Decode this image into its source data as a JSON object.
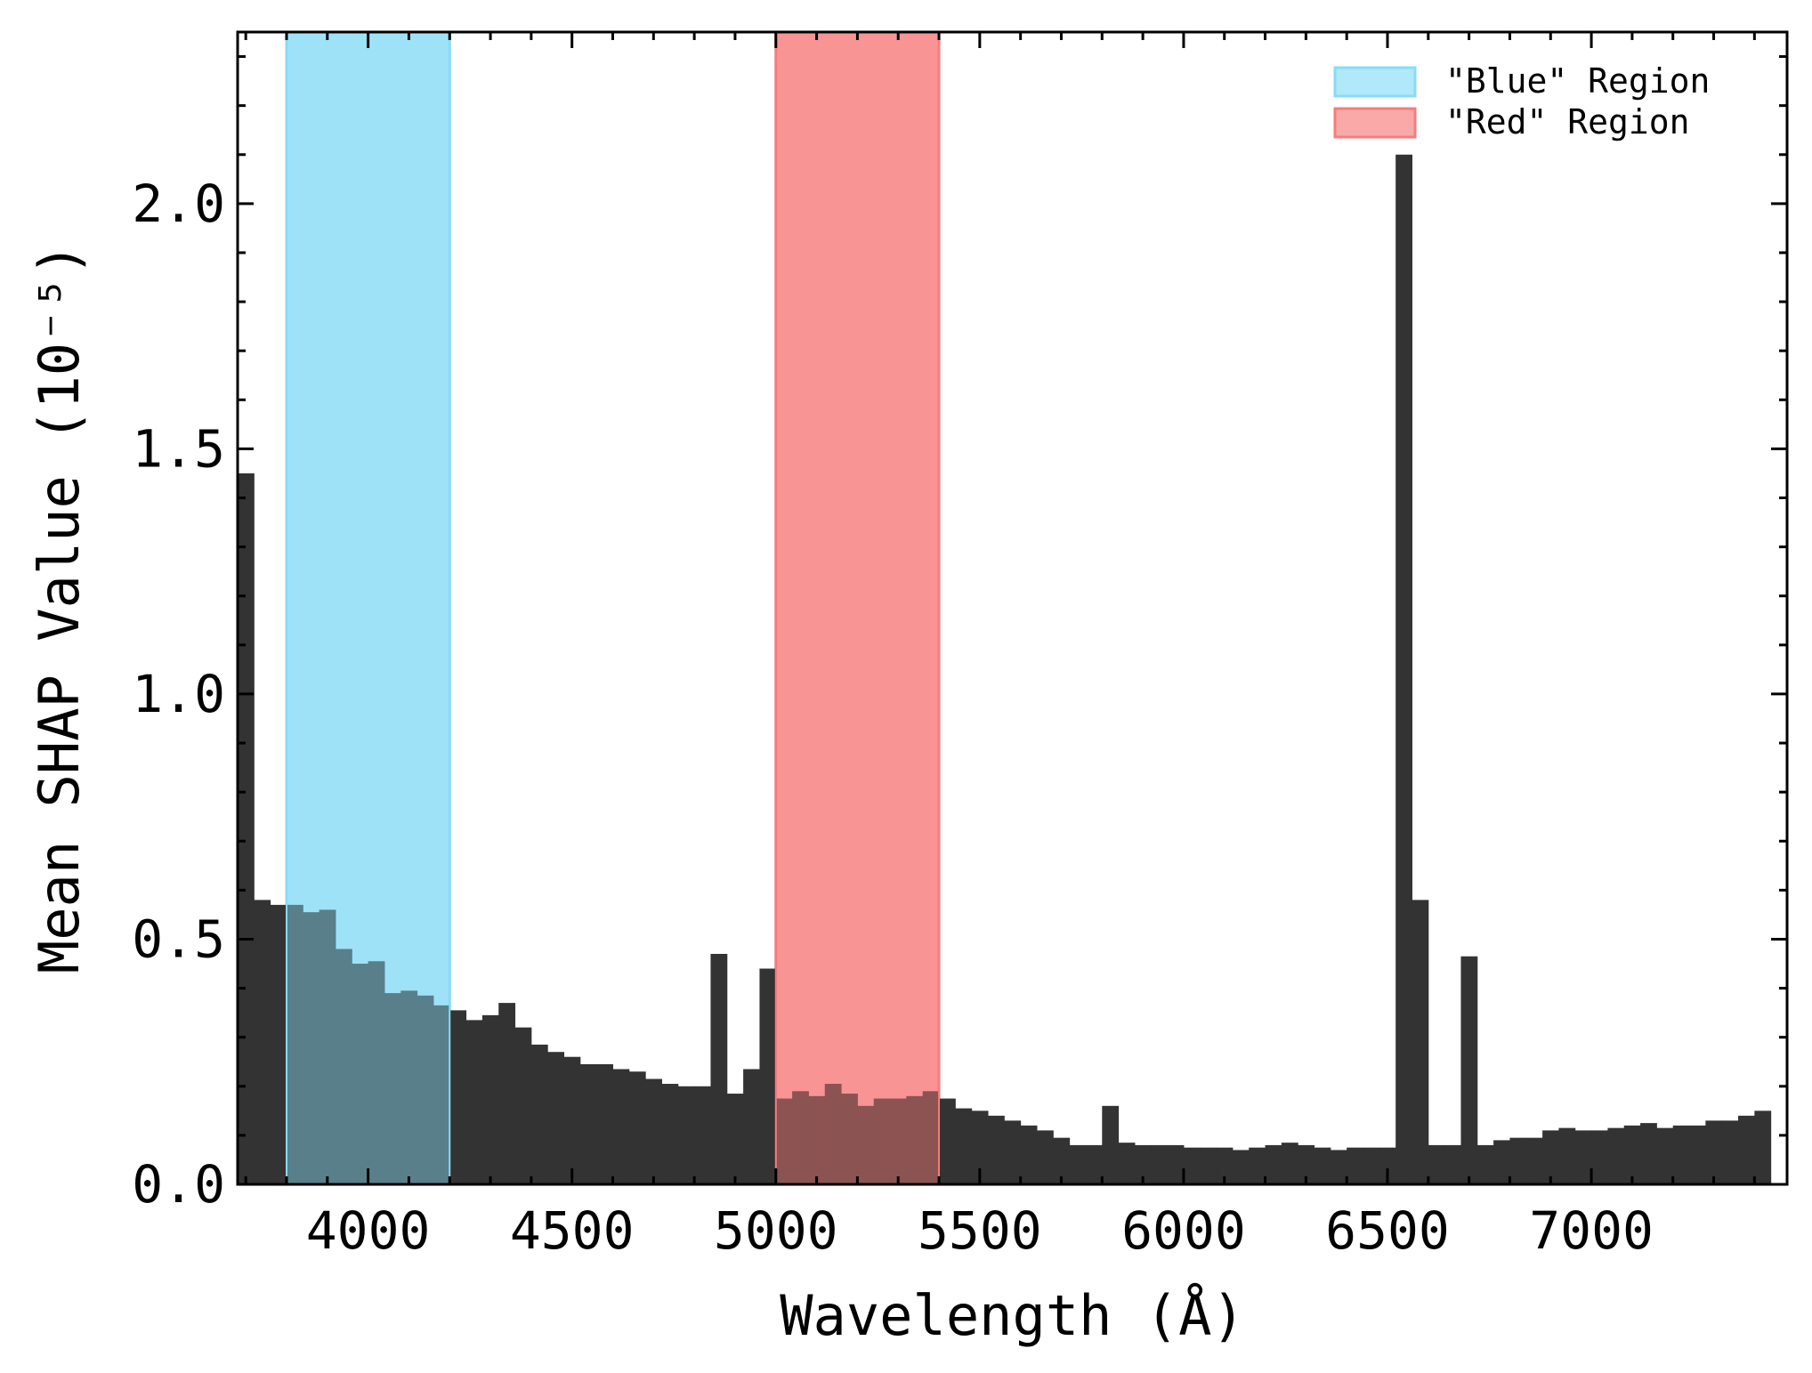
{
  "chart_data": {
    "type": "bar",
    "title": "",
    "xlabel": "Wavelength (Å)",
    "ylabel": "Mean SHAP Value (10⁻⁵)",
    "xlim": [
      3680,
      7480
    ],
    "ylim": [
      0,
      2.35
    ],
    "x_ticks": [
      4000,
      4500,
      5000,
      5500,
      6000,
      6500,
      7000
    ],
    "y_ticks": [
      0.0,
      0.5,
      1.0,
      1.5,
      2.0
    ],
    "x_tick_labels": [
      "4000",
      "4500",
      "5000",
      "5500",
      "6000",
      "6500",
      "7000"
    ],
    "y_tick_labels": [
      "0.0",
      "0.5",
      "1.0",
      "1.5",
      "2.0"
    ],
    "grid": false,
    "bin_width": 40,
    "x_start": 3680,
    "values": [
      1.45,
      0.58,
      0.57,
      0.57,
      0.555,
      0.56,
      0.48,
      0.45,
      0.455,
      0.39,
      0.395,
      0.385,
      0.365,
      0.355,
      0.335,
      0.345,
      0.37,
      0.32,
      0.285,
      0.27,
      0.26,
      0.245,
      0.245,
      0.235,
      0.23,
      0.215,
      0.205,
      0.2,
      0.2,
      0.47,
      0.185,
      0.235,
      0.44,
      0.175,
      0.19,
      0.18,
      0.205,
      0.185,
      0.16,
      0.175,
      0.175,
      0.18,
      0.19,
      0.175,
      0.155,
      0.15,
      0.14,
      0.13,
      0.12,
      0.11,
      0.095,
      0.08,
      0.08,
      0.16,
      0.085,
      0.08,
      0.08,
      0.08,
      0.075,
      0.075,
      0.075,
      0.07,
      0.075,
      0.08,
      0.085,
      0.08,
      0.075,
      0.07,
      0.075,
      0.075,
      0.075,
      2.1,
      0.58,
      0.08,
      0.08,
      0.465,
      0.08,
      0.09,
      0.095,
      0.095,
      0.11,
      0.115,
      0.11,
      0.11,
      0.115,
      0.12,
      0.125,
      0.115,
      0.12,
      0.12,
      0.13,
      0.13,
      0.14,
      0.15
    ],
    "regions": [
      {
        "name": "\"Blue\" Region",
        "x0": 3800,
        "x1": 4200,
        "color": "#87dcf7"
      },
      {
        "name": "\"Red\" Region",
        "x0": 5000,
        "x1": 5400,
        "color": "#f87b7b"
      }
    ],
    "bar_color": "#333333",
    "legend_position": "top-right"
  }
}
